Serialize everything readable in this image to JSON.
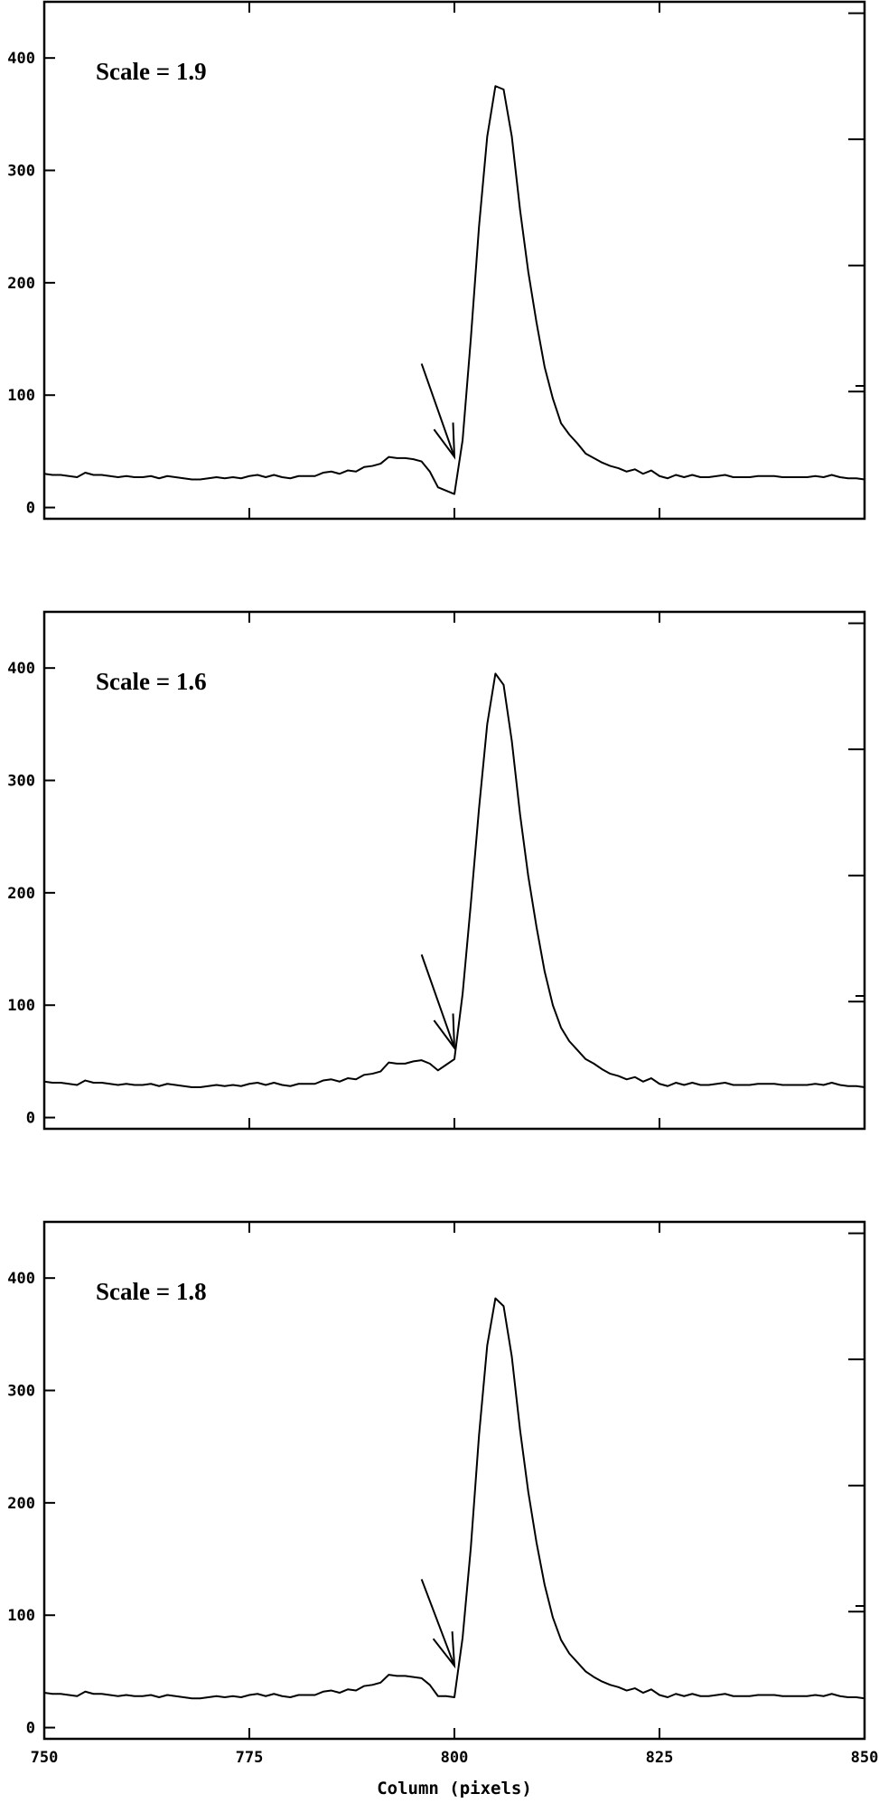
{
  "chart_data": [
    {
      "type": "line",
      "annotation": "Scale = 1.9",
      "xlabel": "",
      "ylabel": "",
      "xlim": [
        750,
        850
      ],
      "ylim": [
        -10,
        450
      ],
      "xticks": [
        "750",
        "775",
        "800",
        "825",
        "850"
      ],
      "yticks": [
        "0",
        "100",
        "200",
        "300",
        "400"
      ],
      "show_x_tick_labels": false,
      "arrow": {
        "from": [
          796,
          128
        ],
        "to": [
          800,
          45
        ]
      },
      "series": [
        {
          "x": [
            750,
            751,
            752,
            753,
            754,
            755,
            756,
            757,
            758,
            759,
            760,
            761,
            762,
            763,
            764,
            765,
            766,
            767,
            768,
            769,
            770,
            771,
            772,
            773,
            774,
            775,
            776,
            777,
            778,
            779,
            780,
            781,
            782,
            783,
            784,
            785,
            786,
            787,
            788,
            789,
            790,
            791,
            792,
            793,
            794,
            795,
            796,
            797,
            798,
            799,
            800,
            801,
            802,
            803,
            804,
            805,
            806,
            807,
            808,
            809,
            810,
            811,
            812,
            813,
            814,
            815,
            816,
            817,
            818,
            819,
            820,
            821,
            822,
            823,
            824,
            825,
            826,
            827,
            828,
            829,
            830,
            831,
            832,
            833,
            834,
            835,
            836,
            837,
            838,
            839,
            840,
            841,
            842,
            843,
            844,
            845,
            846,
            847,
            848,
            849,
            850
          ],
          "y": [
            30,
            29,
            29,
            28,
            27,
            31,
            29,
            29,
            28,
            27,
            28,
            27,
            27,
            28,
            26,
            28,
            27,
            26,
            25,
            25,
            26,
            27,
            26,
            27,
            26,
            28,
            29,
            27,
            29,
            27,
            26,
            28,
            28,
            28,
            31,
            32,
            30,
            33,
            32,
            36,
            37,
            39,
            45,
            44,
            44,
            43,
            41,
            32,
            18,
            15,
            12,
            60,
            150,
            250,
            330,
            375,
            372,
            330,
            265,
            210,
            165,
            125,
            97,
            75,
            65,
            57,
            48,
            44,
            40,
            37,
            35,
            32,
            34,
            30,
            33,
            28,
            26,
            29,
            27,
            29,
            27,
            27,
            28,
            29,
            27,
            27,
            27,
            28,
            28,
            28,
            27,
            27,
            27,
            27,
            28,
            27,
            29,
            27,
            26,
            26,
            25
          ]
        }
      ]
    },
    {
      "type": "line",
      "annotation": "Scale = 1.6",
      "xlabel": "",
      "ylabel": "",
      "xlim": [
        750,
        850
      ],
      "ylim": [
        -10,
        450
      ],
      "xticks": [
        "750",
        "775",
        "800",
        "825",
        "850"
      ],
      "yticks": [
        "0",
        "100",
        "200",
        "300",
        "400"
      ],
      "show_x_tick_labels": false,
      "arrow": {
        "from": [
          796,
          145
        ],
        "to": [
          800,
          62
        ]
      },
      "series": [
        {
          "x": [
            750,
            751,
            752,
            753,
            754,
            755,
            756,
            757,
            758,
            759,
            760,
            761,
            762,
            763,
            764,
            765,
            766,
            767,
            768,
            769,
            770,
            771,
            772,
            773,
            774,
            775,
            776,
            777,
            778,
            779,
            780,
            781,
            782,
            783,
            784,
            785,
            786,
            787,
            788,
            789,
            790,
            791,
            792,
            793,
            794,
            795,
            796,
            797,
            798,
            799,
            800,
            801,
            802,
            803,
            804,
            805,
            806,
            807,
            808,
            809,
            810,
            811,
            812,
            813,
            814,
            815,
            816,
            817,
            818,
            819,
            820,
            821,
            822,
            823,
            824,
            825,
            826,
            827,
            828,
            829,
            830,
            831,
            832,
            833,
            834,
            835,
            836,
            837,
            838,
            839,
            840,
            841,
            842,
            843,
            844,
            845,
            846,
            847,
            848,
            849,
            850
          ],
          "y": [
            32,
            31,
            31,
            30,
            29,
            33,
            31,
            31,
            30,
            29,
            30,
            29,
            29,
            30,
            28,
            30,
            29,
            28,
            27,
            27,
            28,
            29,
            28,
            29,
            28,
            30,
            31,
            29,
            31,
            29,
            28,
            30,
            30,
            30,
            33,
            34,
            32,
            35,
            34,
            38,
            39,
            41,
            49,
            48,
            48,
            50,
            51,
            48,
            42,
            47,
            52,
            110,
            190,
            275,
            350,
            395,
            385,
            335,
            270,
            215,
            170,
            130,
            100,
            80,
            68,
            60,
            52,
            48,
            43,
            39,
            37,
            34,
            36,
            32,
            35,
            30,
            28,
            31,
            29,
            31,
            29,
            29,
            30,
            31,
            29,
            29,
            29,
            30,
            30,
            30,
            29,
            29,
            29,
            29,
            30,
            29,
            31,
            29,
            28,
            28,
            27
          ]
        }
      ]
    },
    {
      "type": "line",
      "annotation": "Scale = 1.8",
      "xlabel": "Column (pixels)",
      "ylabel": "",
      "xlim": [
        750,
        850
      ],
      "ylim": [
        -10,
        450
      ],
      "xticks": [
        "750",
        "775",
        "800",
        "825",
        "850"
      ],
      "yticks": [
        "0",
        "100",
        "200",
        "300",
        "400"
      ],
      "show_x_tick_labels": true,
      "arrow": {
        "from": [
          796,
          132
        ],
        "to": [
          800,
          55
        ]
      },
      "series": [
        {
          "x": [
            750,
            751,
            752,
            753,
            754,
            755,
            756,
            757,
            758,
            759,
            760,
            761,
            762,
            763,
            764,
            765,
            766,
            767,
            768,
            769,
            770,
            771,
            772,
            773,
            774,
            775,
            776,
            777,
            778,
            779,
            780,
            781,
            782,
            783,
            784,
            785,
            786,
            787,
            788,
            789,
            790,
            791,
            792,
            793,
            794,
            795,
            796,
            797,
            798,
            799,
            800,
            801,
            802,
            803,
            804,
            805,
            806,
            807,
            808,
            809,
            810,
            811,
            812,
            813,
            814,
            815,
            816,
            817,
            818,
            819,
            820,
            821,
            822,
            823,
            824,
            825,
            826,
            827,
            828,
            829,
            830,
            831,
            832,
            833,
            834,
            835,
            836,
            837,
            838,
            839,
            840,
            841,
            842,
            843,
            844,
            845,
            846,
            847,
            848,
            849,
            850
          ],
          "y": [
            31,
            30,
            30,
            29,
            28,
            32,
            30,
            30,
            29,
            28,
            29,
            28,
            28,
            29,
            27,
            29,
            28,
            27,
            26,
            26,
            27,
            28,
            27,
            28,
            27,
            29,
            30,
            28,
            30,
            28,
            27,
            29,
            29,
            29,
            32,
            33,
            31,
            34,
            33,
            37,
            38,
            40,
            47,
            46,
            46,
            45,
            44,
            38,
            28,
            28,
            27,
            80,
            160,
            260,
            340,
            382,
            375,
            330,
            265,
            210,
            165,
            127,
            98,
            78,
            66,
            58,
            50,
            45,
            41,
            38,
            36,
            33,
            35,
            31,
            34,
            29,
            27,
            30,
            28,
            30,
            28,
            28,
            29,
            30,
            28,
            28,
            28,
            29,
            29,
            29,
            28,
            28,
            28,
            28,
            29,
            28,
            30,
            28,
            27,
            27,
            26
          ]
        }
      ]
    }
  ]
}
